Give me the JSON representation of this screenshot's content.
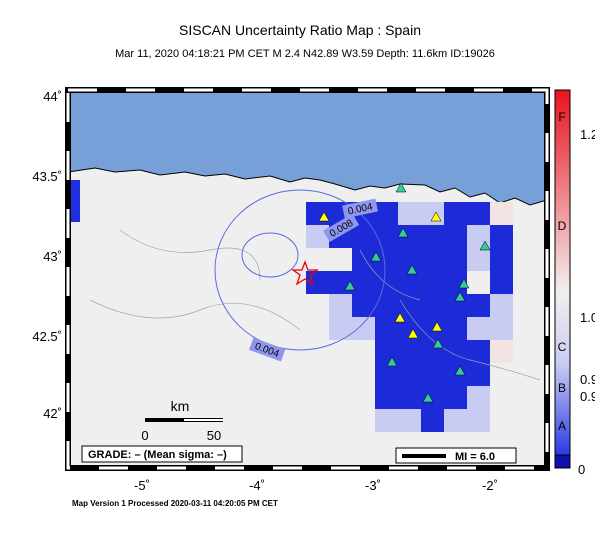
{
  "header": {
    "title": "SISCAN Uncertainty Ratio Map : Spain",
    "subtitle": "Mar 11, 2020 04:18:21 PM CET   M 2.4   N42.89 W3.59   Depth: 11.6km   ID:19026"
  },
  "map": {
    "lat_labels": [
      "44˚",
      "43.5˚",
      "43˚",
      "42.5˚",
      "42˚"
    ],
    "lon_labels": [
      "-5˚",
      "-4˚",
      "-3˚",
      "-2˚"
    ],
    "contour_labels": [
      "0.004",
      "0.008",
      "0.004"
    ],
    "scale": {
      "unit": "km",
      "ticks": [
        "0",
        "50"
      ]
    },
    "grade": "GRADE: – (Mean sigma: –)",
    "mi": "MI = 6.0"
  },
  "colorbar": {
    "letters": [
      "F",
      "D",
      "C",
      "B",
      "A"
    ],
    "values": [
      "1.2",
      "1.0",
      "0.9",
      "0.9",
      "0"
    ]
  },
  "footer": "Map Version 1 Processed 2020-03-11 04:20:05 PM CET"
}
